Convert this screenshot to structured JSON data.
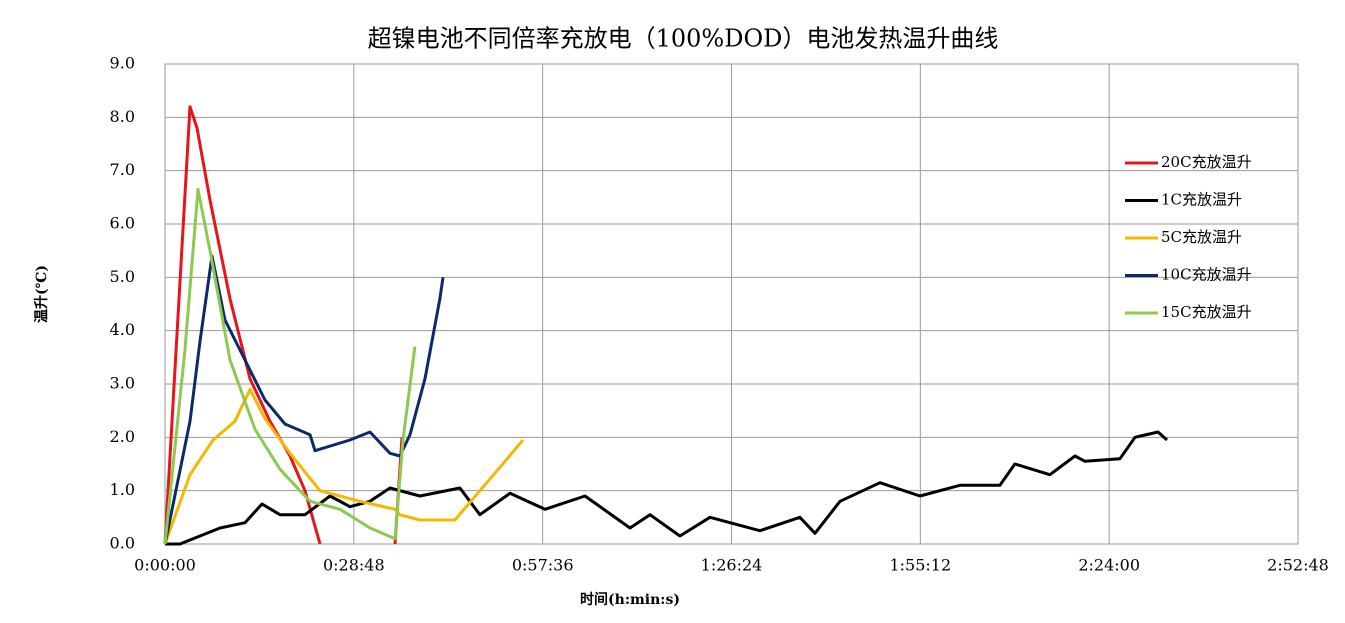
{
  "chart_data": {
    "type": "line",
    "title": "超镍电池不同倍率充放电（100%DOD）电池发热温升曲线",
    "x_label": "时间(h:min:s)",
    "y_label": "温升(℃)",
    "xlim": [
      0,
      10368
    ],
    "ylim": [
      0,
      9
    ],
    "xticks": [
      {
        "value": 0,
        "label": "0:00:00"
      },
      {
        "value": 1728,
        "label": "0:28:48"
      },
      {
        "value": 3456,
        "label": "0:57:36"
      },
      {
        "value": 5184,
        "label": "1:26:24"
      },
      {
        "value": 6912,
        "label": "1:55:12"
      },
      {
        "value": 8640,
        "label": "2:24:00"
      },
      {
        "value": 10368,
        "label": "2:52:48"
      }
    ],
    "yticks": [
      {
        "value": 0,
        "label": "0.0"
      },
      {
        "value": 1,
        "label": "1.0"
      },
      {
        "value": 2,
        "label": "2.0"
      },
      {
        "value": 3,
        "label": "3.0"
      },
      {
        "value": 4,
        "label": "4.0"
      },
      {
        "value": 5,
        "label": "5.0"
      },
      {
        "value": 6,
        "label": "6.0"
      },
      {
        "value": 7,
        "label": "7.0"
      },
      {
        "value": 8,
        "label": "8.0"
      },
      {
        "value": 9,
        "label": "9.0"
      }
    ],
    "grid": true,
    "legend": "right",
    "series": [
      {
        "name": "20C充放温升",
        "color": "#e8141b",
        "x": [
          0,
          229,
          293,
          412,
          595,
          778,
          961,
          1144,
          1281,
          1418,
          null,
          2105,
          2169
        ],
        "values": [
          0,
          8.2,
          7.8,
          6.45,
          4.6,
          3.1,
          2.3,
          1.65,
          1.0,
          0,
          null,
          0,
          2.0
        ]
      },
      {
        "name": "1C充放温升",
        "color": "#000000",
        "x": [
          0,
          137,
          320,
          503,
          732,
          888,
          1052,
          1281,
          1510,
          1693,
          1876,
          2059,
          2333,
          2699,
          2882,
          3157,
          3477,
          3843,
          4255,
          4438,
          4712,
          4987,
          5444,
          5810,
          5948,
          6177,
          6543,
          6909,
          7274,
          7640,
          7777,
          8098,
          8327,
          8418,
          8739,
          8876,
          9087,
          9169
        ],
        "values": [
          0,
          0,
          0.15,
          0.3,
          0.4,
          0.75,
          0.55,
          0.55,
          0.9,
          0.7,
          0.8,
          1.05,
          0.9,
          1.05,
          0.55,
          0.95,
          0.65,
          0.9,
          0.3,
          0.55,
          0.15,
          0.5,
          0.25,
          0.5,
          0.2,
          0.8,
          1.15,
          0.9,
          1.1,
          1.1,
          1.5,
          1.3,
          1.65,
          1.55,
          1.6,
          2.0,
          2.1,
          1.95
        ]
      },
      {
        "name": "5C充放温升",
        "color": "#f5b800",
        "x": [
          0,
          229,
          439,
          640,
          778,
          915,
          1144,
          1418,
          1784,
          2105,
          2150,
          2333,
          2653,
          2882,
          3111,
          3276
        ],
        "values": [
          0,
          1.3,
          1.95,
          2.3,
          2.9,
          2.35,
          1.7,
          1.0,
          0.8,
          0.65,
          0.55,
          0.45,
          0.45,
          1.0,
          1.55,
          1.95
        ]
      },
      {
        "name": "10C充放温升",
        "color": "#0c2a6b",
        "x": [
          0,
          229,
          320,
          430,
          549,
          732,
          915,
          1098,
          1327,
          1373,
          1693,
          1876,
          2059,
          2150,
          2242,
          2379,
          2516,
          2544
        ],
        "values": [
          0,
          2.3,
          3.8,
          5.4,
          4.2,
          3.45,
          2.7,
          2.25,
          2.05,
          1.75,
          1.95,
          2.1,
          1.7,
          1.65,
          2.05,
          3.1,
          4.6,
          5.0
        ]
      },
      {
        "name": "15C充放温升",
        "color": "#8cca4f",
        "x": [
          0,
          183,
          302,
          412,
          595,
          824,
          1052,
          1327,
          1602,
          1876,
          2105,
          2178,
          2287
        ],
        "values": [
          0,
          3.65,
          6.65,
          5.5,
          3.45,
          2.15,
          1.4,
          0.8,
          0.65,
          0.3,
          0.1,
          1.95,
          3.7
        ]
      }
    ]
  }
}
